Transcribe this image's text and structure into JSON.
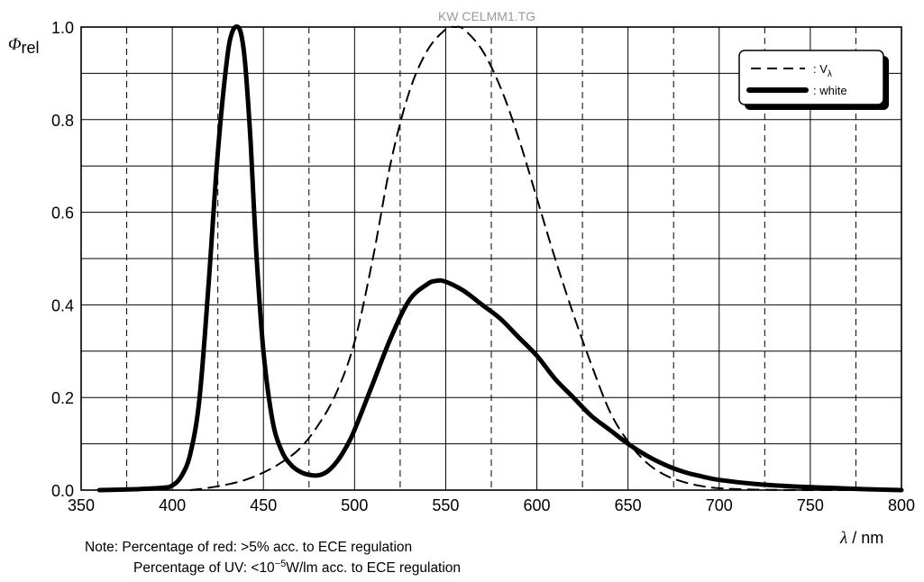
{
  "watermark": "KW CELMM1.TG",
  "chart_data": {
    "type": "line",
    "title": "",
    "xlabel": "λ / nm",
    "ylabel": "Φrel",
    "xlim": [
      350,
      800
    ],
    "ylim": [
      0.0,
      1.0
    ],
    "x_ticks": [
      "350",
      "400",
      "450",
      "500",
      "550",
      "600",
      "650",
      "700",
      "750",
      "800"
    ],
    "y_ticks": [
      "0.0",
      "0.2",
      "0.4",
      "0.6",
      "0.8",
      "1.0"
    ],
    "grid": true,
    "legend_position": "top-right",
    "series": [
      {
        "name": ": Vλ",
        "style": "dashed",
        "x": [
          410,
          420,
          430,
          440,
          450,
          460,
          470,
          480,
          490,
          500,
          510,
          520,
          530,
          540,
          550,
          555,
          560,
          570,
          580,
          590,
          600,
          610,
          620,
          630,
          640,
          650,
          660,
          670,
          680,
          690,
          700,
          720,
          750,
          780
        ],
        "values": [
          0.0,
          0.005,
          0.012,
          0.022,
          0.038,
          0.06,
          0.09,
          0.14,
          0.21,
          0.32,
          0.5,
          0.71,
          0.86,
          0.95,
          0.995,
          1.0,
          0.995,
          0.95,
          0.87,
          0.76,
          0.63,
          0.5,
          0.38,
          0.27,
          0.17,
          0.105,
          0.06,
          0.033,
          0.018,
          0.009,
          0.004,
          0.001,
          0.0,
          0.0
        ]
      },
      {
        "name": ": white",
        "style": "solid",
        "x": [
          360,
          380,
          395,
          400,
          405,
          410,
          415,
          420,
          425,
          430,
          433,
          436,
          438,
          440,
          443,
          446,
          450,
          455,
          460,
          465,
          470,
          475,
          480,
          485,
          490,
          495,
          500,
          510,
          520,
          530,
          540,
          545,
          550,
          560,
          570,
          580,
          590,
          600,
          610,
          620,
          630,
          640,
          650,
          660,
          670,
          680,
          690,
          700,
          720,
          740,
          760,
          780,
          800
        ],
        "values": [
          0.0,
          0.002,
          0.005,
          0.01,
          0.03,
          0.08,
          0.2,
          0.45,
          0.73,
          0.93,
          0.99,
          1.0,
          0.98,
          0.92,
          0.75,
          0.52,
          0.3,
          0.15,
          0.085,
          0.055,
          0.04,
          0.033,
          0.032,
          0.04,
          0.06,
          0.09,
          0.13,
          0.23,
          0.33,
          0.41,
          0.445,
          0.452,
          0.45,
          0.43,
          0.4,
          0.37,
          0.33,
          0.29,
          0.24,
          0.2,
          0.16,
          0.13,
          0.1,
          0.075,
          0.055,
          0.04,
          0.03,
          0.022,
          0.013,
          0.008,
          0.005,
          0.002,
          0.0
        ]
      }
    ]
  },
  "legend": {
    "entries": [
      {
        "prefix": ": V",
        "subscript": "λ"
      },
      {
        "prefix": ": white",
        "subscript": ""
      }
    ]
  },
  "axes": {
    "y_symbol": "Φ",
    "y_subscript": "rel",
    "x_symbol": "λ",
    "x_unit": " / nm"
  },
  "notes": {
    "line1": "Note:  Percentage of red: >5% acc. to ECE regulation",
    "line2_prefix": "Percentage of UV: <10",
    "line2_superscript": "−5",
    "line2_suffix": "W/lm acc. to ECE regulation"
  }
}
